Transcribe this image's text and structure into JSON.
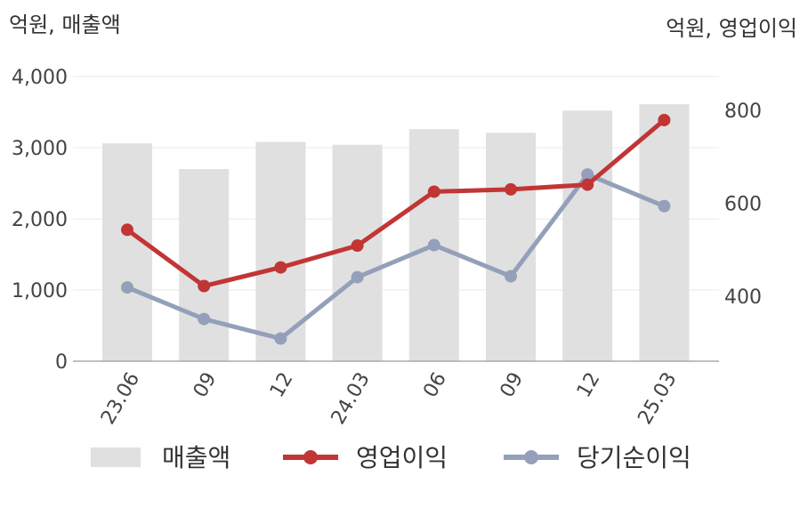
{
  "chart_data": {
    "type": "bar-line-combo",
    "categories": [
      "23.06",
      "09",
      "12",
      "24.03",
      "06",
      "09",
      "12",
      "25.03"
    ],
    "left_axis": {
      "unit_label": "억원, 매출액",
      "range": [
        0,
        4000
      ],
      "ticks": [
        "0",
        "1,000",
        "2,000",
        "3,000",
        "4,000"
      ]
    },
    "right_axis": {
      "unit_label": "억원, 영업이익",
      "range": [
        260,
        880
      ],
      "ticks": [
        "400",
        "600",
        "800"
      ]
    },
    "series": [
      {
        "name": "매출액",
        "type": "bar",
        "axis": "left",
        "color": "#e0e0e0",
        "values": [
          3060,
          2700,
          3080,
          3040,
          3260,
          3210,
          3520,
          3610
        ]
      },
      {
        "name": "영업이익",
        "type": "line",
        "axis": "right",
        "color": "#c23535",
        "values": [
          543,
          422,
          462,
          509,
          625,
          630,
          640,
          779
        ]
      },
      {
        "name": "당기순이익",
        "type": "line",
        "axis": "right",
        "color": "#94a0ba",
        "values": [
          419,
          351,
          309,
          441,
          510,
          443,
          662,
          594
        ]
      }
    ],
    "legend": {
      "position": "bottom"
    },
    "grid": true
  }
}
